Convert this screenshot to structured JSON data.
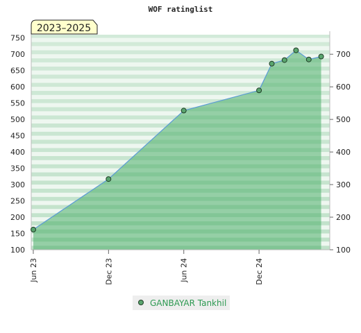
{
  "chart_data": {
    "type": "area",
    "title": "WOF ratinglist",
    "period_badge": "2023–2025",
    "x_ticks": [
      "Jun 23",
      "Dec 23",
      "Jun 24",
      "Dec 24"
    ],
    "y_ticks": [
      100,
      150,
      200,
      250,
      300,
      350,
      400,
      450,
      500,
      550,
      600,
      650,
      700,
      750
    ],
    "right_y_ticks": [
      100,
      200,
      300,
      400,
      500,
      600,
      700
    ],
    "ylim": [
      100,
      760
    ],
    "series": [
      {
        "name": "GANBAYAR Tankhil",
        "x": [
          "2023-06-01",
          "2023-12-01",
          "2024-06-01",
          "2024-12-01",
          "2025-01-01",
          "2025-02-01",
          "2025-03-01",
          "2025-04-01",
          "2025-05-01"
        ],
        "y": [
          162,
          317,
          527,
          589,
          671,
          682,
          712,
          684,
          693
        ]
      }
    ],
    "colors": {
      "area_fill": "#4caf6a",
      "line": "#5b9bd5",
      "marker_fill": "#5aa56e",
      "marker_stroke": "#1f3d26",
      "band_dark": "#b5dcc0",
      "band_light": "#eef7f0",
      "legend_text": "#2e9a52",
      "badge_fill": "#ffffcc"
    },
    "grid": true,
    "legend_position": "bottom-center"
  }
}
